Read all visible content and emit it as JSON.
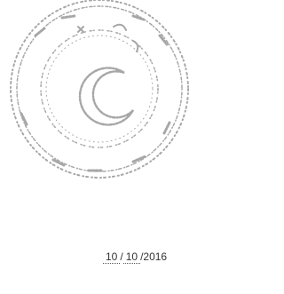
{
  "date": {
    "day": "10",
    "separator": "/",
    "month": "10",
    "year": "2016"
  }
}
